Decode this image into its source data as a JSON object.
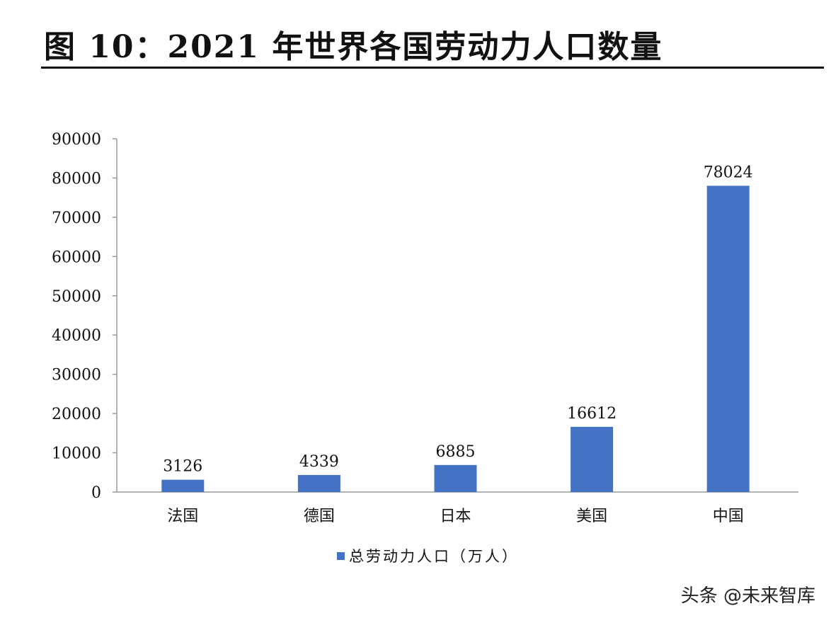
{
  "watermark": "头条 @未来智库",
  "chart_data": {
    "type": "bar",
    "title": "图 10：2021 年世界各国劳动力人口数量",
    "categories": [
      "法国",
      "德国",
      "日本",
      "美国",
      "中国"
    ],
    "series": [
      {
        "name": "总劳动力人口（万人）",
        "values": [
          3126,
          4339,
          6885,
          16612,
          78024
        ]
      }
    ],
    "data_labels": [
      "3126",
      "4339",
      "6885",
      "16612",
      "78024"
    ],
    "yticks": [
      "0",
      "10000",
      "20000",
      "30000",
      "40000",
      "50000",
      "60000",
      "70000",
      "80000",
      "90000"
    ],
    "ylim": [
      0,
      90000
    ],
    "xlabel": "",
    "ylabel": "",
    "grid": false,
    "legend_position": "bottom-center",
    "bar_color": "#4472c4"
  }
}
